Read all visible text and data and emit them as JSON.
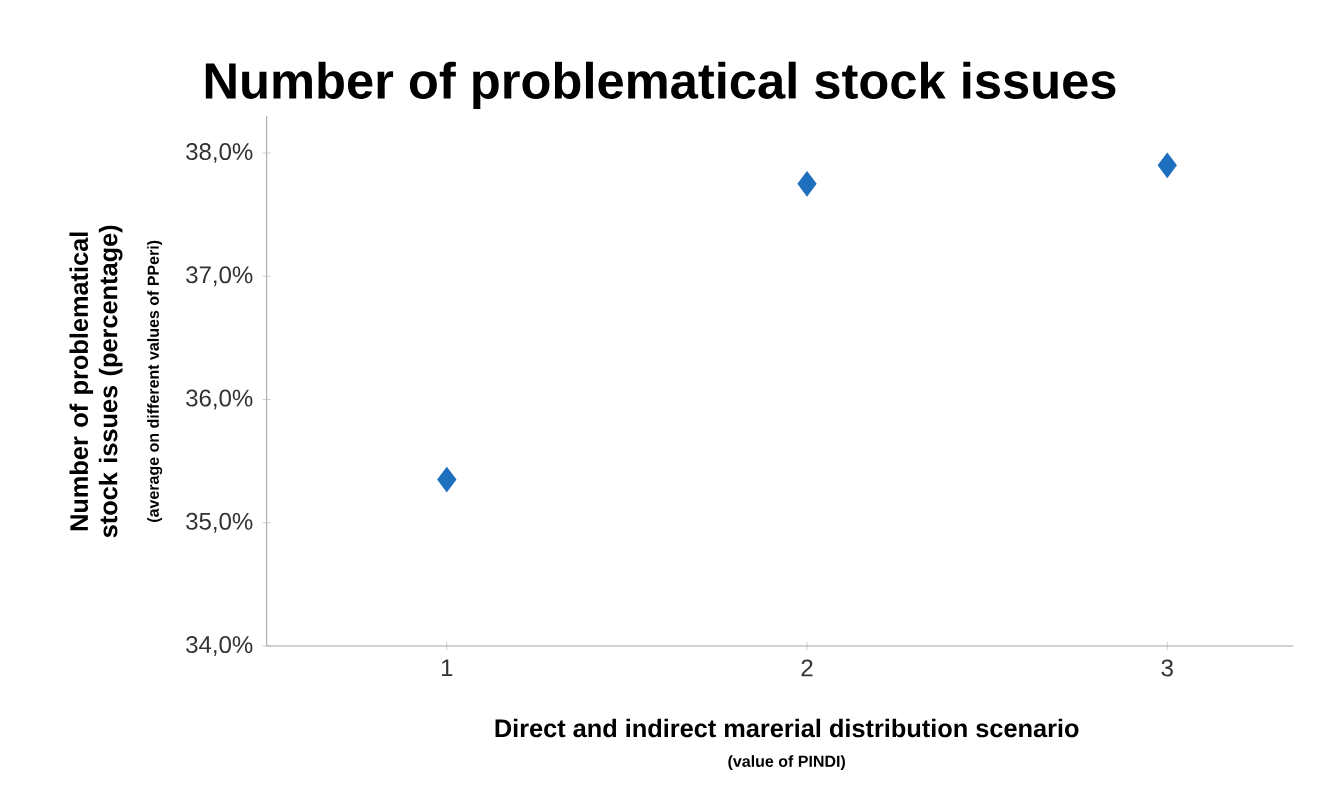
{
  "chart_data": {
    "type": "scatter",
    "title": "Number of problematical stock issues",
    "xlabel": "Direct and indirect marerial distribution scenario",
    "ylabel": "Number of problematical stock issues (percentage)",
    "annotations": [
      "(average on different values of PPeri)",
      "(value of PINDI)"
    ],
    "categories": [
      "1",
      "2",
      "3"
    ],
    "series": [
      {
        "color": "#1f6fbf",
        "values": [
          35.35,
          37.75,
          37.9
        ]
      }
    ],
    "ylim": [
      34,
      38.3
    ],
    "yticks": [
      {
        "value": 34,
        "label": "34,0%"
      },
      {
        "value": 35,
        "label": "35,0%"
      },
      {
        "value": 36,
        "label": "36,0%"
      },
      {
        "value": 37,
        "label": "37,0%"
      },
      {
        "value": 38,
        "label": "38,0%"
      }
    ],
    "marker": "diamond",
    "grid": false
  }
}
